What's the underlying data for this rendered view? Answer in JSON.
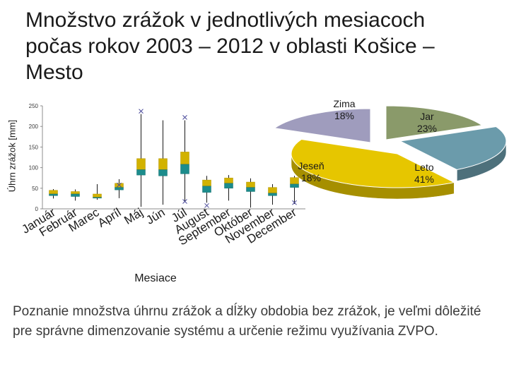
{
  "slide": {
    "title": "Množstvo zrážok v jednotlivých mesiacoch počas rokov 2003 – 2012 v oblasti Košice – Mesto",
    "body": "Poznanie množstva úhrnu zrážok a dĺžky obdobia bez zrážok, je veľmi dôležité pre správne dimenzovanie systému a určenie režimu využívania ZVPO."
  },
  "chart_data": [
    {
      "type": "box",
      "title": "",
      "xlabel": "Mesiace",
      "ylabel": "Úhrn zrážok [mm]",
      "ylim": [
        0,
        250
      ],
      "yticks": [
        0,
        50,
        100,
        150,
        200,
        250
      ],
      "categories": [
        "Január",
        "Február",
        "Marec",
        "Apríl",
        "Máj",
        "Jún",
        "Júl",
        "August",
        "September",
        "Október",
        "November",
        "December"
      ],
      "boxes": [
        {
          "min": 25,
          "q1": 32,
          "median": 36,
          "q3": 45,
          "max": 48
        },
        {
          "min": 20,
          "q1": 30,
          "median": 36,
          "q3": 42,
          "max": 47
        },
        {
          "min": 22,
          "q1": 26,
          "median": 28,
          "q3": 36,
          "max": 60
        },
        {
          "min": 26,
          "q1": 46,
          "median": 52,
          "q3": 62,
          "max": 72
        },
        {
          "min": 5,
          "q1": 82,
          "median": 95,
          "q3": 122,
          "max": 230
        },
        {
          "min": 10,
          "q1": 80,
          "median": 95,
          "q3": 122,
          "max": 215
        },
        {
          "min": 18,
          "q1": 85,
          "median": 108,
          "q3": 138,
          "max": 215
        },
        {
          "min": 15,
          "q1": 40,
          "median": 55,
          "q3": 70,
          "max": 80
        },
        {
          "min": 20,
          "q1": 50,
          "median": 62,
          "q3": 75,
          "max": 82
        },
        {
          "min": 3,
          "q1": 42,
          "median": 52,
          "q3": 65,
          "max": 74
        },
        {
          "min": 10,
          "q1": 32,
          "median": 38,
          "q3": 52,
          "max": 60
        },
        {
          "min": 12,
          "q1": 52,
          "median": 60,
          "q3": 76,
          "max": 80
        }
      ],
      "outliers": [
        {
          "category": "Apríl",
          "value": 58
        },
        {
          "category": "Máj",
          "value": 237
        },
        {
          "category": "Júl",
          "value": 222
        },
        {
          "category": "Júl",
          "value": 18
        },
        {
          "category": "August",
          "value": 8
        },
        {
          "category": "December",
          "value": 15
        }
      ],
      "colors": {
        "box_upper": "#d2b200",
        "box_lower": "#1c8c8c",
        "whisker": "#1a1a1a",
        "outlier": "#4a4a9a"
      }
    },
    {
      "type": "pie",
      "title": "",
      "style": "3d-exploded",
      "categories": [
        "Zima",
        "Jar",
        "Leto",
        "Jeseň"
      ],
      "values": [
        18,
        23,
        41,
        18
      ],
      "labels": [
        "Zima 18%",
        "Jar 23%",
        "Leto 41%",
        "Jeseň 18%"
      ],
      "colors": [
        "#8a9a6a",
        "#6b9bab",
        "#e6c600",
        "#9f9cbd"
      ]
    }
  ]
}
